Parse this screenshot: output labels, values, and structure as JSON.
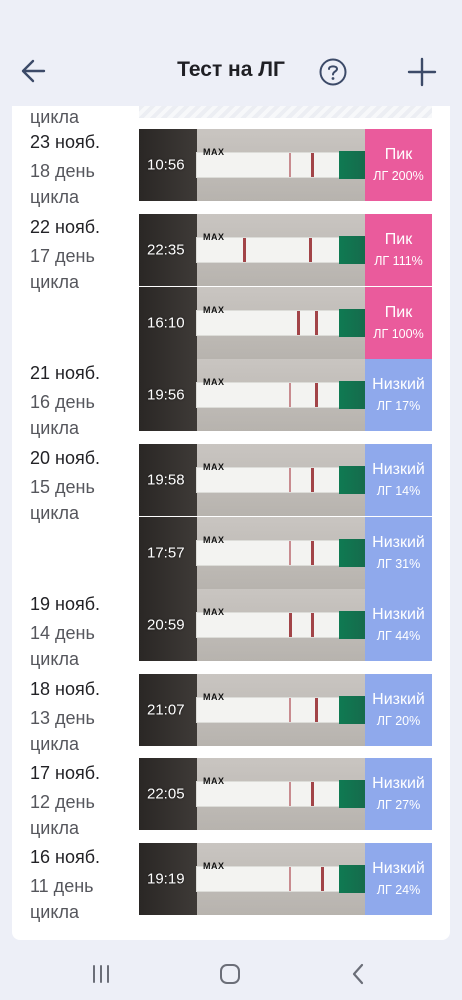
{
  "header": {
    "title": "Тест на ЛГ",
    "back_icon": "arrow-left-icon",
    "help_icon": "question-circle-icon",
    "add_icon": "plus-icon"
  },
  "partial_cycle_label": "цикла",
  "days": [
    {
      "date": "23 нояб.",
      "cycle_day": "18 день",
      "cycle_word": "цикла"
    },
    {
      "date": "22 нояб.",
      "cycle_day": "17 день",
      "cycle_word": "цикла"
    },
    {
      "date": "21 нояб.",
      "cycle_day": "16 день",
      "cycle_word": "цикла"
    },
    {
      "date": "20 нояб.",
      "cycle_day": "15 день",
      "cycle_word": "цикла"
    },
    {
      "date": "19 нояб.",
      "cycle_day": "14 день",
      "cycle_word": "цикла"
    },
    {
      "date": "18 нояб.",
      "cycle_day": "13 день",
      "cycle_word": "цикла"
    },
    {
      "date": "17 нояб.",
      "cycle_day": "12 день",
      "cycle_word": "цикла"
    },
    {
      "date": "16 нояб.",
      "cycle_day": "11 день",
      "cycle_word": "цикла"
    }
  ],
  "entries": [
    {
      "time": "10:56",
      "status": "Пик",
      "level": "ЛГ 200%",
      "kind": "peak",
      "mark": "MAX"
    },
    {
      "time": "22:35",
      "status": "Пик",
      "level": "ЛГ 111%",
      "kind": "peak",
      "mark": "MAX"
    },
    {
      "time": "16:10",
      "status": "Пик",
      "level": "ЛГ 100%",
      "kind": "peak",
      "mark": "MAX"
    },
    {
      "time": "19:56",
      "status": "Низкий",
      "level": "ЛГ 17%",
      "kind": "low",
      "mark": "MAX"
    },
    {
      "time": "19:58",
      "status": "Низкий",
      "level": "ЛГ 14%",
      "kind": "low",
      "mark": "MAX"
    },
    {
      "time": "17:57",
      "status": "Низкий",
      "level": "ЛГ 31%",
      "kind": "low",
      "mark": "MAX"
    },
    {
      "time": "20:59",
      "status": "Низкий",
      "level": "ЛГ 44%",
      "kind": "low",
      "mark": "MAX"
    },
    {
      "time": "21:07",
      "status": "Низкий",
      "level": "ЛГ 20%",
      "kind": "low",
      "mark": "MAX"
    },
    {
      "time": "22:05",
      "status": "Низкий",
      "level": "ЛГ 27%",
      "kind": "low",
      "mark": "MAX"
    },
    {
      "time": "19:19",
      "status": "Низкий",
      "level": "ЛГ 24%",
      "kind": "low",
      "mark": "MAX"
    }
  ],
  "colors": {
    "peak": "#ea5b9c",
    "low": "#8fa9ec",
    "background": "#edeff7"
  },
  "navbar": {
    "recents_icon": "recent-apps-icon",
    "home_icon": "home-icon",
    "back_icon": "back-chevron-icon"
  }
}
